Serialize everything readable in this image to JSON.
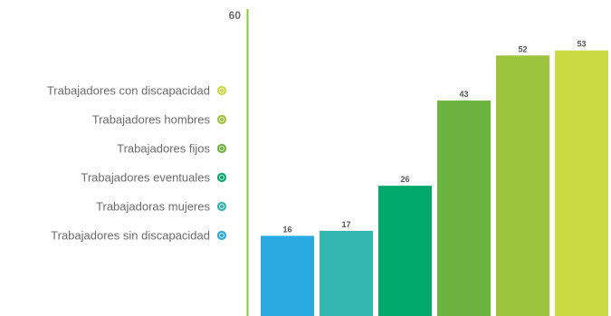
{
  "chart_data": {
    "type": "bar",
    "ylim": [
      0,
      60
    ],
    "ymax_label": "60",
    "categories": [
      "Trabajadores sin discapacidad",
      "Trabajadoras mujeres",
      "Trabajadores eventuales",
      "Trabajadores fijos",
      "Trabajadores hombres",
      "Trabajadores con discapacidad"
    ],
    "values": [
      16,
      17,
      26,
      43,
      52,
      53
    ],
    "colors": [
      "#29abe2",
      "#33b6b0",
      "#00a86b",
      "#6db33f",
      "#9cc43c",
      "#cdda41"
    ],
    "legend": [
      {
        "label": "Trabajadores con discapacidad",
        "color": "#cdda41"
      },
      {
        "label": "Trabajadores hombres",
        "color": "#9cc43c"
      },
      {
        "label": "Trabajadores fijos",
        "color": "#6db33f"
      },
      {
        "label": "Trabajadores eventuales",
        "color": "#00a86b"
      },
      {
        "label": "Trabajadoras mujeres",
        "color": "#33b6b0"
      },
      {
        "label": "Trabajadores sin discapacidad",
        "color": "#29abe2"
      }
    ],
    "legend_position": "left",
    "axis_color": "#8dc63f",
    "grid": false
  }
}
